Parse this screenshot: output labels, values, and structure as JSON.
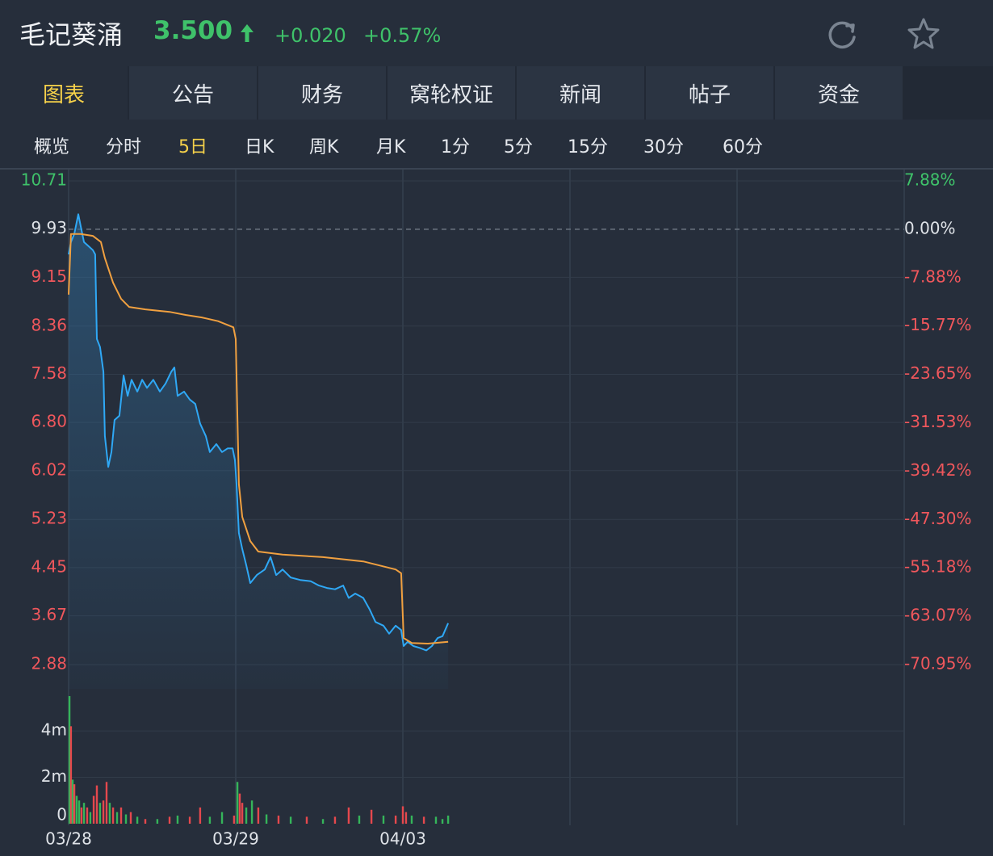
{
  "header": {
    "name": "毛记葵涌",
    "price": "3.500",
    "change": "+0.020",
    "change_percent": "+0.57%"
  },
  "tabs": {
    "items": [
      "图表",
      "公告",
      "财务",
      "窝轮权证",
      "新闻",
      "帖子",
      "资金"
    ],
    "active": 0
  },
  "subtabs": {
    "items": [
      "概览",
      "分时",
      "5日",
      "日K",
      "周K",
      "月K",
      "1分",
      "5分",
      "15分",
      "30分",
      "60分"
    ],
    "active": 2
  },
  "chart_data": [
    {
      "type": "line",
      "xlim": [
        0,
        5
      ],
      "xticks": [
        {
          "value": 0,
          "label": "03/28"
        },
        {
          "value": 1,
          "label": "03/29"
        },
        {
          "value": 2,
          "label": "04/03"
        }
      ],
      "ylim": [
        2.88,
        10.71
      ],
      "yticks": [
        10.71,
        9.93,
        9.15,
        8.36,
        7.58,
        {
          "value": 6.8,
          "label": "6.80"
        },
        6.02,
        5.23,
        4.45,
        3.67,
        2.88
      ],
      "y2lim": [
        -70.95,
        7.88
      ],
      "y2ticks": [
        {
          "value": 7.88,
          "label": "7.88%"
        },
        {
          "value": 0,
          "label": "0.00%"
        },
        {
          "value": -7.88,
          "label": "-7.88%"
        },
        {
          "value": -15.77,
          "label": "-15.77%"
        },
        {
          "value": -23.65,
          "label": "-23.65%"
        },
        {
          "value": -31.53,
          "label": "-31.53%"
        },
        {
          "value": -39.42,
          "label": "-39.42%"
        },
        {
          "value": -47.3,
          "label": "-47.30%"
        },
        {
          "value": -55.18,
          "label": "-55.18%"
        },
        {
          "value": -63.07,
          "label": "-63.07%"
        },
        {
          "value": -70.95,
          "label": "-70.95%"
        }
      ],
      "grid": true,
      "series": [
        {
          "color": "#2fa8f5",
          "x": [
            0,
            0.014,
            0.034,
            0.058,
            0.072,
            0.092,
            0.121,
            0.145,
            0.159,
            0.169,
            0.188,
            0.208,
            0.217,
            0.237,
            0.256,
            0.275,
            0.304,
            0.329,
            0.353,
            0.377,
            0.411,
            0.44,
            0.469,
            0.507,
            0.546,
            0.58,
            0.614,
            0.633,
            0.652,
            0.691,
            0.725,
            0.758,
            0.787,
            0.821,
            0.845,
            0.884,
            0.918,
            0.952,
            0.981,
            0.995,
            1.005,
            1.019,
            1.039,
            1.063,
            1.087,
            1.126,
            1.174,
            1.208,
            1.242,
            1.28,
            1.329,
            1.386,
            1.449,
            1.498,
            1.546,
            1.594,
            1.643,
            1.676,
            1.715,
            1.763,
            1.802,
            1.836,
            1.884,
            1.918,
            1.957,
            1.99,
            2.005,
            2.029,
            2.063,
            2.101,
            2.14,
            2.174,
            2.208,
            2.237,
            2.271
          ],
          "values": [
            9.52,
            9.72,
            9.85,
            10.17,
            9.98,
            9.72,
            9.65,
            9.59,
            9.52,
            8.15,
            8.02,
            7.62,
            6.58,
            6.08,
            6.32,
            6.84,
            6.91,
            7.56,
            7.23,
            7.49,
            7.3,
            7.49,
            7.36,
            7.49,
            7.3,
            7.43,
            7.62,
            7.69,
            7.23,
            7.3,
            7.17,
            7.1,
            6.78,
            6.58,
            6.32,
            6.45,
            6.32,
            6.38,
            6.38,
            6.19,
            5.8,
            5.01,
            4.75,
            4.49,
            4.2,
            4.33,
            4.42,
            4.62,
            4.33,
            4.42,
            4.29,
            4.25,
            4.23,
            4.16,
            4.12,
            4.1,
            4.16,
            3.96,
            4.03,
            3.96,
            3.77,
            3.57,
            3.51,
            3.38,
            3.51,
            3.44,
            3.18,
            3.25,
            3.18,
            3.15,
            3.11,
            3.18,
            3.31,
            3.34,
            3.55
          ]
        },
        {
          "color": "#f0a040",
          "x": [
            0,
            0.014,
            0.072,
            0.145,
            0.193,
            0.217,
            0.266,
            0.314,
            0.362,
            0.459,
            0.604,
            0.7,
            0.797,
            0.894,
            0.986,
            1.0,
            1.019,
            1.039,
            1.087,
            1.135,
            1.28,
            1.522,
            1.763,
            1.957,
            1.99,
            2.005,
            2.053,
            2.15,
            2.271
          ],
          "values": [
            8.87,
            9.85,
            9.85,
            9.82,
            9.72,
            9.46,
            9.06,
            8.8,
            8.67,
            8.63,
            8.59,
            8.54,
            8.5,
            8.44,
            8.34,
            8.15,
            5.8,
            5.27,
            4.88,
            4.71,
            4.66,
            4.62,
            4.55,
            4.42,
            4.36,
            3.31,
            3.23,
            3.22,
            3.25
          ]
        }
      ]
    },
    {
      "type": "bar",
      "xlim": [
        0,
        5
      ],
      "ylim": [
        0,
        5.5
      ],
      "yticks": [
        {
          "value": 4,
          "label": "4m"
        },
        {
          "value": 2,
          "label": "2m"
        },
        0
      ],
      "x": [
        0.005,
        0.014,
        0.024,
        0.034,
        0.048,
        0.063,
        0.077,
        0.092,
        0.111,
        0.13,
        0.15,
        0.169,
        0.188,
        0.208,
        0.227,
        0.246,
        0.266,
        0.29,
        0.314,
        0.343,
        0.372,
        0.411,
        0.459,
        0.531,
        0.604,
        0.652,
        0.725,
        0.787,
        0.845,
        0.918,
        0.99,
        1.01,
        1.024,
        1.039,
        1.063,
        1.097,
        1.135,
        1.184,
        1.256,
        1.329,
        1.425,
        1.522,
        1.594,
        1.676,
        1.739,
        1.812,
        1.884,
        1.957,
        2.0,
        2.019,
        2.053,
        2.126,
        2.198,
        2.237,
        2.271
      ],
      "values": [
        5.5,
        4.2,
        1.9,
        1.7,
        1.2,
        1.0,
        0.7,
        0.9,
        0.7,
        0.5,
        1.2,
        1.65,
        0.9,
        1.0,
        1.8,
        0.9,
        0.7,
        0.5,
        0.7,
        0.4,
        0.5,
        0.3,
        0.2,
        0.2,
        0.3,
        0.35,
        0.3,
        0.7,
        0.3,
        0.5,
        0.35,
        1.8,
        1.3,
        0.9,
        0.7,
        1.0,
        0.7,
        0.4,
        0.35,
        0.3,
        0.3,
        0.2,
        0.3,
        0.7,
        0.35,
        0.6,
        0.35,
        0.35,
        0.75,
        0.5,
        0.35,
        0.3,
        0.3,
        0.2,
        0.35
      ],
      "colors": [
        "#35b55a",
        "#e5484d",
        "#35b55a",
        "#e5484d",
        "#35b55a",
        "#35b55a",
        "#e5484d",
        "#35b55a",
        "#e5484d",
        "#35b55a",
        "#e5484d",
        "#e5484d",
        "#35b55a",
        "#e5484d",
        "#e5484d",
        "#35b55a",
        "#e5484d",
        "#35b55a",
        "#e5484d",
        "#35b55a",
        "#e5484d",
        "#35b55a",
        "#e5484d",
        "#35b55a",
        "#e5484d",
        "#35b55a",
        "#e5484d",
        "#e5484d",
        "#35b55a",
        "#35b55a",
        "#e5484d",
        "#35b55a",
        "#e5484d",
        "#e5484d",
        "#35b55a",
        "#35b55a",
        "#e5484d",
        "#35b55a",
        "#e5484d",
        "#35b55a",
        "#e5484d",
        "#35b55a",
        "#e5484d",
        "#e5484d",
        "#35b55a",
        "#e5484d",
        "#35b55a",
        "#e5484d",
        "#e5484d",
        "#e5484d",
        "#35b55a",
        "#e5484d",
        "#35b55a",
        "#35b55a",
        "#35b55a"
      ]
    }
  ]
}
